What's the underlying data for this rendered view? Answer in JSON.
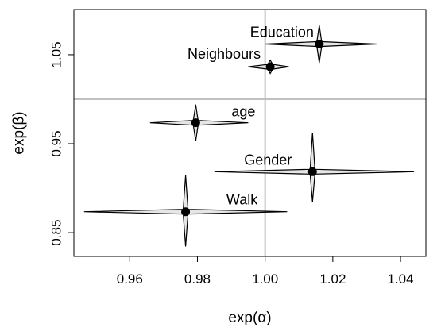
{
  "chart_data": {
    "type": "scatter",
    "title": "",
    "xlabel": "exp(α)",
    "ylabel": "exp(β)",
    "xlim": [
      0.9435,
      1.0475
    ],
    "ylim": [
      0.8233,
      1.1008
    ],
    "x_ticks": [
      0.96,
      0.98,
      1.0,
      1.02,
      1.04
    ],
    "x_tick_labels": [
      "0.96",
      "0.98",
      "1.00",
      "1.02",
      "1.04"
    ],
    "y_ticks": [
      0.85,
      0.95,
      1.05
    ],
    "y_tick_labels": [
      "0.85",
      "0.95",
      "1.05"
    ],
    "reference_lines": {
      "x": 1.0,
      "y": 1.0,
      "color": "#c0c0c0"
    },
    "grid": false,
    "legend": "none",
    "colors": {
      "point": "#000000",
      "interval_fill": "#e6e6e6",
      "interval_stroke": "#000000",
      "reference": "#c0c0c0"
    },
    "points": [
      {
        "label": "Education",
        "x": 1.016,
        "y": 1.062,
        "x_low": 1.0,
        "x_high": 1.033,
        "y_low": 1.041,
        "y_high": 1.083
      },
      {
        "label": "Neighbours",
        "x": 1.0015,
        "y": 1.0365,
        "x_low": 0.995,
        "x_high": 1.007,
        "y_low": 1.029,
        "y_high": 1.044
      },
      {
        "label": "age",
        "x": 0.9795,
        "y": 0.9735,
        "x_low": 0.966,
        "x_high": 0.995,
        "y_low": 0.953,
        "y_high": 0.994
      },
      {
        "label": "Gender",
        "x": 1.014,
        "y": 0.9185,
        "x_low": 0.985,
        "x_high": 1.044,
        "y_low": 0.8845,
        "y_high": 0.9625
      },
      {
        "label": "Walk",
        "x": 0.9765,
        "y": 0.8735,
        "x_low": 0.9465,
        "x_high": 1.0065,
        "y_low": 0.8345,
        "y_high": 0.9145
      }
    ]
  }
}
